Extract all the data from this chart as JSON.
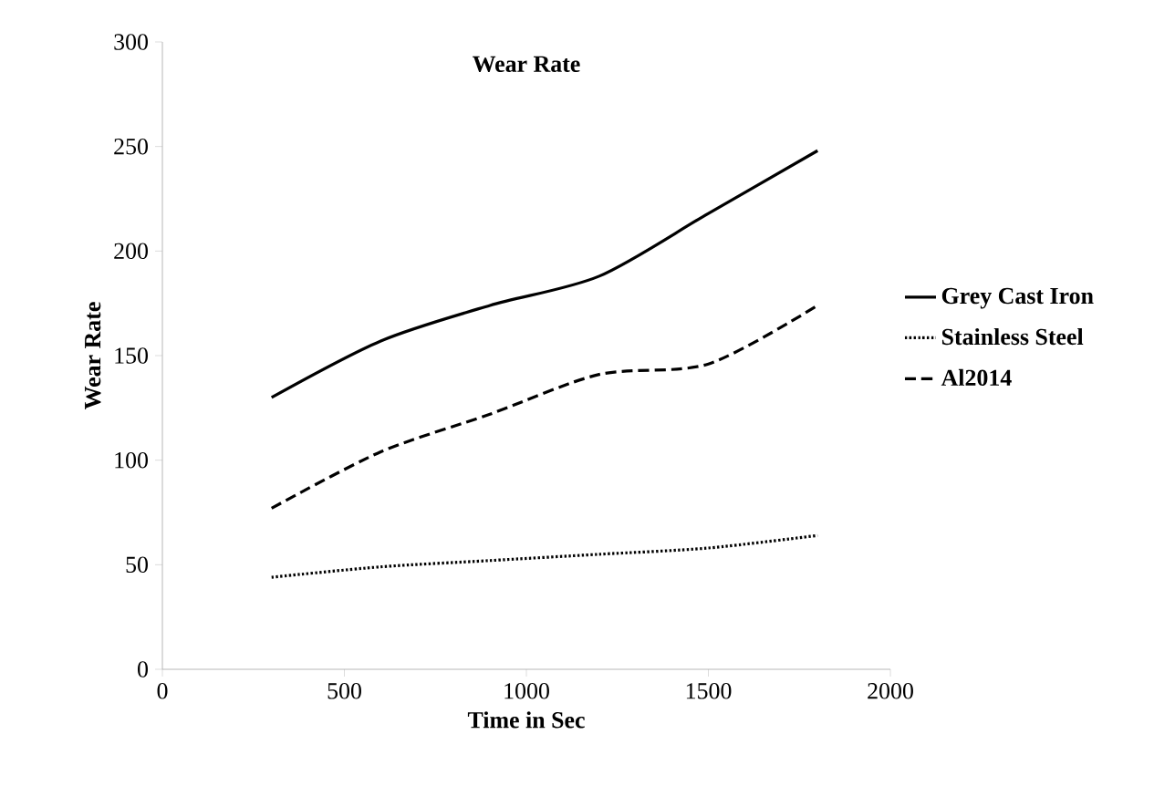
{
  "chart_data": {
    "type": "line",
    "title": "Wear Rate",
    "xlabel": "Time in Sec",
    "ylabel": "Wear Rate",
    "x": [
      300,
      600,
      900,
      1200,
      1500,
      1800
    ],
    "series": [
      {
        "name": "Grey Cast Iron",
        "color": "#000000",
        "line_style": "solid",
        "values": [
          130,
          157,
          174,
          188,
          218,
          248
        ]
      },
      {
        "name": "Stainless Steel",
        "color": "#000000",
        "line_style": "dotted",
        "values": [
          44,
          49,
          52,
          55,
          58,
          64
        ]
      },
      {
        "name": "Al2014",
        "color": "#000000",
        "line_style": "dashed",
        "values": [
          77,
          104,
          122,
          141,
          146,
          174
        ]
      }
    ],
    "xlim": [
      0,
      2000
    ],
    "xticks": [
      0,
      500,
      1000,
      1500,
      2000
    ],
    "ylim": [
      0,
      300
    ],
    "yticks": [
      0,
      50,
      100,
      150,
      200,
      250,
      300
    ],
    "legend": "right",
    "grid": false
  }
}
